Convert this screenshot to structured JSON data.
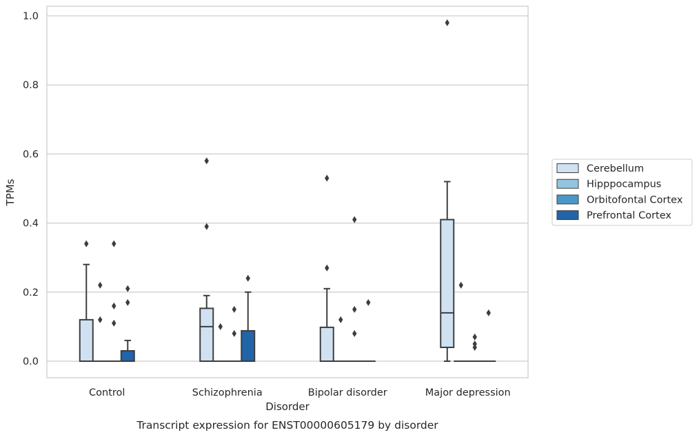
{
  "chart_data": {
    "type": "boxplot",
    "caption": "Transcript expression for ENST00000605179 by disorder",
    "xlabel": "Disorder",
    "ylabel": "TPMs",
    "ylim": [
      -0.047,
      1.03
    ],
    "yticks": [
      0.0,
      0.2,
      0.4,
      0.6,
      0.8,
      1.0
    ],
    "ytick_labels": [
      "0.0",
      "0.2",
      "0.4",
      "0.6",
      "0.8",
      "1.0"
    ],
    "grid": "horizontal",
    "legend_position": "outside-right",
    "categories": [
      "Control",
      "Schizophrenia",
      "Bipolar disorder",
      "Major depression"
    ],
    "series": [
      {
        "name": "Cerebellum",
        "color": "#d0e1f2",
        "boxes": [
          {
            "whislo": 0.0,
            "q1": 0.0,
            "med": 0.0,
            "q3": 0.12,
            "whishi": 0.28,
            "fliers": [
              0.34
            ]
          },
          {
            "whislo": 0.0,
            "q1": 0.0,
            "med": 0.1,
            "q3": 0.153,
            "whishi": 0.19,
            "fliers": [
              0.39,
              0.58
            ]
          },
          {
            "whislo": 0.0,
            "q1": 0.0,
            "med": 0.0,
            "q3": 0.098,
            "whishi": 0.21,
            "fliers": [
              0.27,
              0.53
            ]
          },
          {
            "whislo": 0.0,
            "q1": 0.04,
            "med": 0.14,
            "q3": 0.41,
            "whishi": 0.52,
            "fliers": [
              0.98
            ]
          }
        ]
      },
      {
        "name": "Hipppocampus",
        "color": "#94c4df",
        "boxes": [
          {
            "whislo": 0.0,
            "q1": 0.0,
            "med": 0.0,
            "q3": 0.0,
            "whishi": 0.0,
            "fliers": [
              0.12,
              0.22
            ]
          },
          {
            "whislo": 0.0,
            "q1": 0.0,
            "med": 0.0,
            "q3": 0.0,
            "whishi": 0.0,
            "fliers": [
              0.1
            ]
          },
          {
            "whislo": 0.0,
            "q1": 0.0,
            "med": 0.0,
            "q3": 0.0,
            "whishi": 0.0,
            "fliers": [
              0.12
            ]
          },
          {
            "whislo": 0.0,
            "q1": 0.0,
            "med": 0.0,
            "q3": 0.0,
            "whishi": 0.0,
            "fliers": [
              0.22
            ]
          }
        ]
      },
      {
        "name": "Orbitofontal Cortex",
        "color": "#4a98c9",
        "boxes": [
          {
            "whislo": 0.0,
            "q1": 0.0,
            "med": 0.0,
            "q3": 0.0,
            "whishi": 0.0,
            "fliers": [
              0.11,
              0.16,
              0.34
            ]
          },
          {
            "whislo": 0.0,
            "q1": 0.0,
            "med": 0.0,
            "q3": 0.0,
            "whishi": 0.0,
            "fliers": [
              0.08,
              0.15
            ]
          },
          {
            "whislo": 0.0,
            "q1": 0.0,
            "med": 0.0,
            "q3": 0.0,
            "whishi": 0.0,
            "fliers": [
              0.08,
              0.15,
              0.41
            ]
          },
          {
            "whislo": 0.0,
            "q1": 0.0,
            "med": 0.0,
            "q3": 0.0,
            "whishi": 0.0,
            "fliers": [
              0.04,
              0.05,
              0.07
            ]
          }
        ]
      },
      {
        "name": "Prefrontal Cortex",
        "color": "#2264a8",
        "boxes": [
          {
            "whislo": 0.0,
            "q1": 0.0,
            "med": 0.0,
            "q3": 0.03,
            "whishi": 0.06,
            "fliers": [
              0.17,
              0.21
            ]
          },
          {
            "whislo": 0.0,
            "q1": 0.0,
            "med": 0.0,
            "q3": 0.088,
            "whishi": 0.2,
            "fliers": [
              0.24
            ]
          },
          {
            "whislo": 0.0,
            "q1": 0.0,
            "med": 0.0,
            "q3": 0.0,
            "whishi": 0.0,
            "fliers": [
              0.17
            ]
          },
          {
            "whislo": 0.0,
            "q1": 0.0,
            "med": 0.0,
            "q3": 0.0,
            "whishi": 0.0,
            "fliers": [
              0.14
            ]
          }
        ]
      }
    ]
  }
}
